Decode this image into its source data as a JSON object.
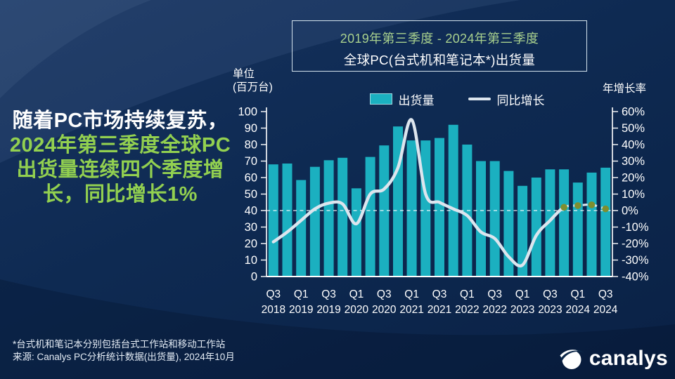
{
  "headline": {
    "text_white": "随着PC市场持续复苏，",
    "text_green": "2024年第三季度全球PC出货量连续四个季度增长，同比增长1%"
  },
  "title_box": {
    "period": "2019年第三季度 - 2024年第三季度",
    "title": "全球PC(台式机和笔记本*)出货量"
  },
  "axis_titles": {
    "left_line1": "单位",
    "left_line2": "(百万台)",
    "right": "年增长率"
  },
  "legend": {
    "bars": "出货量",
    "line": "同比增长"
  },
  "footnotes": {
    "line1": "*台式机和笔记本分别包括台式工作站和移动工作站",
    "line2": "来源: Canalys PC分析统计数据(出货量), 2024年10月"
  },
  "logo": {
    "text": "canalys"
  },
  "colors": {
    "background": "#0d2850",
    "bar": "#1bb0c0",
    "line": "#dce5ee",
    "marker": "#7e8e2f",
    "headline_green": "#92d050",
    "period_green": "#a9d18e",
    "axis_text": "#ffffff"
  },
  "chart_data": {
    "type": "bar+line",
    "title": "全球PC(台式机和笔记本*)出货量",
    "subtitle": "2019年第三季度 - 2024年第三季度",
    "categories": [
      "2018 Q3",
      "2018 Q4",
      "2019 Q1",
      "2019 Q2",
      "2019 Q3",
      "2019 Q4",
      "2020 Q1",
      "2020 Q2",
      "2020 Q3",
      "2020 Q4",
      "2021 Q1",
      "2021 Q2",
      "2021 Q3",
      "2021 Q4",
      "2022 Q1",
      "2022 Q2",
      "2022 Q3",
      "2022 Q4",
      "2023 Q1",
      "2023 Q2",
      "2023 Q3",
      "2023 Q4",
      "2024 Q1",
      "2024 Q2",
      "2024 Q3"
    ],
    "x_tick_labels": [
      [
        "Q3",
        "2018"
      ],
      [
        "Q1",
        "2019"
      ],
      [
        "Q3",
        "2019"
      ],
      [
        "Q1",
        "2020"
      ],
      [
        "Q3",
        "2020"
      ],
      [
        "Q1",
        "2021"
      ],
      [
        "Q3",
        "2021"
      ],
      [
        "Q1",
        "2022"
      ],
      [
        "Q3",
        "2022"
      ],
      [
        "Q1",
        "2023"
      ],
      [
        "Q3",
        "2023"
      ],
      [
        "Q1",
        "2024"
      ],
      [
        "Q3",
        "2024"
      ]
    ],
    "series": [
      {
        "name": "出货量",
        "type": "bar",
        "axis": "left",
        "unit": "百万台",
        "values": [
          68,
          68.5,
          58.5,
          66.5,
          70.5,
          72,
          53.5,
          72.5,
          79.5,
          91,
          82.5,
          82.5,
          84,
          92,
          80,
          70,
          70,
          64,
          55,
          60,
          65,
          65,
          57,
          63,
          66
        ]
      },
      {
        "name": "同比增长",
        "type": "line",
        "axis": "right",
        "unit": "%",
        "values": [
          -19,
          -13,
          -6,
          1,
          4.5,
          4,
          -8,
          10,
          13,
          26,
          55,
          10,
          5,
          1,
          -3,
          -13,
          -17,
          -28,
          -33,
          -15,
          -6,
          2,
          3,
          3.5,
          1
        ],
        "dashed_from_index": 21,
        "marker_indices": [
          21,
          22,
          23,
          24
        ]
      }
    ],
    "left_axis": {
      "title": "单位(百万台)",
      "min": 0,
      "max": 100,
      "step": 10
    },
    "right_axis": {
      "title": "年增长率",
      "min": -40,
      "max": 60,
      "step": 10,
      "suffix": "%"
    },
    "zero_reference_line": true,
    "grid": false,
    "legend_position": "top"
  }
}
